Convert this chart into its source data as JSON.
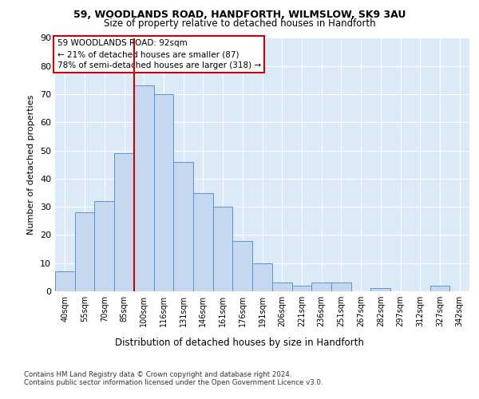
{
  "title_line1": "59, WOODLANDS ROAD, HANDFORTH, WILMSLOW, SK9 3AU",
  "title_line2": "Size of property relative to detached houses in Handforth",
  "xlabel": "Distribution of detached houses by size in Handforth",
  "ylabel": "Number of detached properties",
  "categories": [
    "40sqm",
    "55sqm",
    "70sqm",
    "85sqm",
    "100sqm",
    "116sqm",
    "131sqm",
    "146sqm",
    "161sqm",
    "176sqm",
    "191sqm",
    "206sqm",
    "221sqm",
    "236sqm",
    "251sqm",
    "267sqm",
    "282sqm",
    "297sqm",
    "312sqm",
    "327sqm",
    "342sqm"
  ],
  "values": [
    7,
    28,
    32,
    49,
    73,
    70,
    46,
    35,
    30,
    18,
    10,
    3,
    2,
    3,
    3,
    0,
    1,
    0,
    0,
    2,
    0
  ],
  "bar_color": "#c5d8f0",
  "bar_edge_color": "#5a96c8",
  "vline_x_idx": 4,
  "vline_color": "#cc0000",
  "annotation_text": "59 WOODLANDS ROAD: 92sqm\n← 21% of detached houses are smaller (87)\n78% of semi-detached houses are larger (318) →",
  "annotation_box_color": "#ffffff",
  "annotation_box_edge": "#cc0000",
  "ylim": [
    0,
    90
  ],
  "yticks": [
    0,
    10,
    20,
    30,
    40,
    50,
    60,
    70,
    80,
    90
  ],
  "bg_color": "#dce9f7",
  "footer_line1": "Contains HM Land Registry data © Crown copyright and database right 2024.",
  "footer_line2": "Contains public sector information licensed under the Open Government Licence v3.0."
}
